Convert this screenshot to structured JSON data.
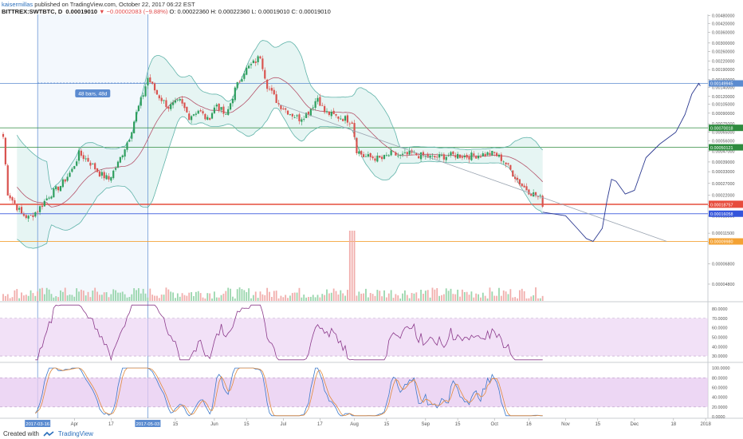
{
  "header": {
    "author": "kaisermillas",
    "published": "published on TradingView.com, October 22, 2017 06:22 EST",
    "symbol": "BITTREX:SWTBTC, D",
    "last": "0.00019010",
    "arrow": "▼",
    "change": "−0.00002083 (−9.88%)",
    "ohlc": "O: 0.00022360 H: 0.00022360 L: 0.00019010 C: 0.00019010"
  },
  "footer": {
    "created_with": "Created with",
    "brand": "TradingView"
  },
  "colors": {
    "up": "#2e9e5e",
    "down": "#d9534f",
    "band": "#5fb3a9",
    "basis": "#b5546b",
    "band_fill": "#e6f5f3",
    "rsi": "#8b3a8b",
    "osc_fill": "#e7c9f0",
    "stoch_k": "#3d79c9",
    "stoch_d": "#e08a3c",
    "projection": "#2b3990",
    "trend": "#9aa4b1",
    "tag_price": "#e74c3c",
    "tag_blue": "#3455db",
    "tag_green": "#2e8b3e",
    "tag_orange": "#f4a233",
    "tag_gray": "#5b8bd0"
  },
  "chart_data": {
    "type": "candlestick",
    "xlim": [
      "2017-03-01",
      "2018-01-02"
    ],
    "ylim": [
      3.6e-05,
      0.0049
    ],
    "scale": "log",
    "x_ticks": [
      "Apr",
      "17",
      "15",
      "Jun",
      "15",
      "Jul",
      "17",
      "Aug",
      "15",
      "Sep",
      "15",
      "Oct",
      "16",
      "Nov",
      "15",
      "Dec",
      "18",
      "2018"
    ],
    "x_ticks_dates": [
      "2017-04-01",
      "2017-04-17",
      "2017-05-15",
      "2017-06-01",
      "2017-06-15",
      "2017-07-01",
      "2017-07-17",
      "2017-08-01",
      "2017-08-15",
      "2017-09-01",
      "2017-09-15",
      "2017-10-01",
      "2017-10-16",
      "2017-11-01",
      "2017-11-15",
      "2017-12-01",
      "2017-12-18",
      "2018-01-01"
    ],
    "x_highlights": [
      {
        "label": "2017-03-16",
        "date": "2017-03-16"
      },
      {
        "label": "2017-05-03",
        "date": "2017-05-03"
      }
    ],
    "y_ticks": [
      "0.00480000",
      "0.00420000",
      "0.00360000",
      "0.00300000",
      "0.00260000",
      "0.00220000",
      "0.00190000",
      "0.00160000",
      "0.00140000",
      "0.00120000",
      "0.00105000",
      "0.00090000",
      "0.00075000",
      "0.00065000",
      "0.00056000",
      "0.00047000",
      "0.00039000",
      "0.00033000",
      "0.00027000",
      "0.00022000",
      "0.00018500",
      "0.00015500",
      "0.00011500",
      "0.00009800",
      "0.00006800",
      "0.00004800"
    ],
    "price_tags": [
      {
        "label": "0.00149945",
        "value": 0.00149945,
        "color": "#5b8bd0"
      },
      {
        "label": "0.00070018",
        "value": 0.00070018,
        "color": "#2e8b3e"
      },
      {
        "label": "0.00050121",
        "value": 0.00050121,
        "color": "#2e8b3e"
      },
      {
        "label": "0.00019010",
        "value": 0.0001901,
        "color": "#e74c3c"
      },
      {
        "label": "0.00018757",
        "value": 0.00018757,
        "color": "#e74c3c"
      },
      {
        "label": "0.00016058",
        "value": 0.00016058,
        "color": "#3455db"
      },
      {
        "label": "0.00009980",
        "value": 9.98e-05,
        "color": "#f4a233"
      }
    ],
    "measure_label": "48 bars, 48d",
    "measure_range": [
      "2017-03-16",
      "2017-05-03"
    ],
    "anchors": [
      [
        "2017-03-01",
        0.0006
      ],
      [
        "2017-03-03",
        0.00023
      ],
      [
        "2017-03-06",
        0.00019
      ],
      [
        "2017-03-09",
        0.00016
      ],
      [
        "2017-03-12",
        0.00015
      ],
      [
        "2017-03-16",
        0.00017
      ],
      [
        "2017-03-21",
        0.00022
      ],
      [
        "2017-03-26",
        0.00026
      ],
      [
        "2017-03-31",
        0.00034
      ],
      [
        "2017-04-03",
        0.00045
      ],
      [
        "2017-04-07",
        0.0004
      ],
      [
        "2017-04-12",
        0.00032
      ],
      [
        "2017-04-16",
        0.00029
      ],
      [
        "2017-04-20",
        0.00038
      ],
      [
        "2017-04-25",
        0.0006
      ],
      [
        "2017-04-28",
        0.0009
      ],
      [
        "2017-05-01",
        0.00125
      ],
      [
        "2017-05-03",
        0.00165
      ],
      [
        "2017-05-07",
        0.00125
      ],
      [
        "2017-05-12",
        0.001
      ],
      [
        "2017-05-17",
        0.0011
      ],
      [
        "2017-05-21",
        0.00085
      ],
      [
        "2017-05-25",
        0.00095
      ],
      [
        "2017-05-29",
        0.0008
      ],
      [
        "2017-06-02",
        0.00105
      ],
      [
        "2017-06-06",
        0.00085
      ],
      [
        "2017-06-10",
        0.00135
      ],
      [
        "2017-06-14",
        0.00185
      ],
      [
        "2017-06-19",
        0.0022
      ],
      [
        "2017-06-21",
        0.0024
      ],
      [
        "2017-06-24",
        0.00145
      ],
      [
        "2017-06-29",
        0.00105
      ],
      [
        "2017-07-04",
        0.0009
      ],
      [
        "2017-07-08",
        0.00082
      ],
      [
        "2017-07-12",
        0.00092
      ],
      [
        "2017-07-16",
        0.00118
      ],
      [
        "2017-07-19",
        0.00092
      ],
      [
        "2017-07-24",
        0.00085
      ],
      [
        "2017-07-28",
        0.00082
      ],
      [
        "2017-07-31",
        0.00078
      ],
      [
        "2017-08-02",
        0.00048
      ],
      [
        "2017-08-05",
        0.00043
      ],
      [
        "2017-08-09",
        0.00042
      ],
      [
        "2017-08-13",
        0.00041
      ],
      [
        "2017-08-17",
        0.00045
      ],
      [
        "2017-08-21",
        0.00043
      ],
      [
        "2017-08-26",
        0.00045
      ],
      [
        "2017-08-31",
        0.00043
      ],
      [
        "2017-09-04",
        0.00042
      ],
      [
        "2017-09-09",
        0.00043
      ],
      [
        "2017-09-14",
        0.00044
      ],
      [
        "2017-09-19",
        0.00043
      ],
      [
        "2017-09-24",
        0.00044
      ],
      [
        "2017-09-29",
        0.00045
      ],
      [
        "2017-10-01",
        0.00045
      ],
      [
        "2017-10-05",
        0.0004
      ],
      [
        "2017-10-09",
        0.00032
      ],
      [
        "2017-10-13",
        0.00026
      ],
      [
        "2017-10-17",
        0.00023
      ],
      [
        "2017-10-21",
        0.00021
      ],
      [
        "2017-10-22",
        0.00019
      ]
    ],
    "projection": [
      [
        "2017-10-22",
        0.000165
      ],
      [
        "2017-11-01",
        0.000155
      ],
      [
        "2017-11-06",
        0.000125
      ],
      [
        "2017-11-10",
        0.000105
      ],
      [
        "2017-11-13",
        0.0001
      ],
      [
        "2017-11-17",
        0.000125
      ],
      [
        "2017-11-19",
        0.0002
      ],
      [
        "2017-11-21",
        0.00029
      ],
      [
        "2017-11-23",
        0.00028
      ],
      [
        "2017-11-27",
        0.000225
      ],
      [
        "2017-12-01",
        0.00024
      ],
      [
        "2017-12-06",
        0.00042
      ],
      [
        "2017-12-12",
        0.00053
      ],
      [
        "2017-12-19",
        0.00065
      ],
      [
        "2017-12-23",
        0.00088
      ],
      [
        "2017-12-26",
        0.00125
      ],
      [
        "2017-12-29",
        0.0015
      ]
    ],
    "trendline": [
      [
        "2017-06-29",
        0.00105
      ],
      [
        "2017-12-15",
        0.0001
      ]
    ],
    "volume_spike": {
      "date": "2017-07-31",
      "relative": 1.0
    },
    "rsi": {
      "ylim": [
        25,
        85
      ],
      "ticks": [
        "80.0000",
        "70.0000",
        "60.0000",
        "50.0000",
        "40.0000",
        "30.0000"
      ],
      "band": [
        30,
        70
      ]
    },
    "stoch": {
      "ylim": [
        0,
        110
      ],
      "ticks": [
        "100.0000",
        "80.0000",
        "60.0000",
        "40.0000",
        "20.0000",
        "0.0000"
      ],
      "band": [
        20,
        80
      ]
    }
  }
}
